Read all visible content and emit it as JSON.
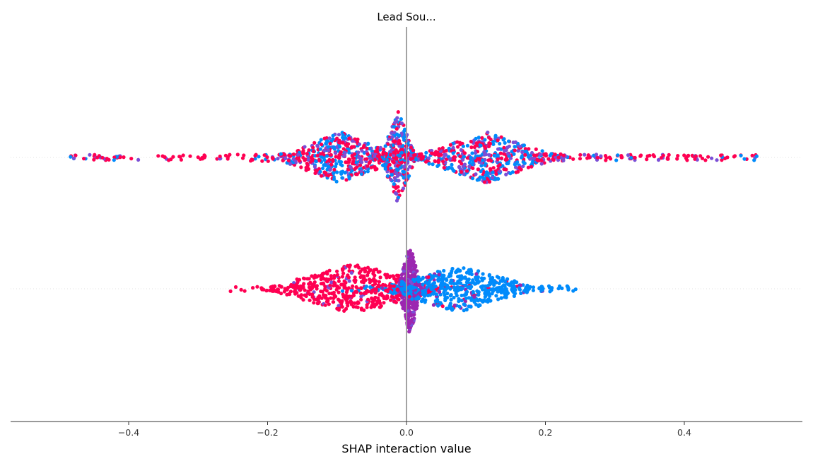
{
  "chart_data": {
    "type": "scatter",
    "subtype": "shap-interaction-beeswarm",
    "title": "Lead Sou...",
    "xlabel": "SHAP interaction value",
    "xlim": [
      -0.57,
      0.57
    ],
    "xticks": [
      -0.4,
      -0.2,
      0.0,
      0.2,
      0.4
    ],
    "xtick_labels": [
      "−0.4",
      "−0.2",
      "0.0",
      "0.2",
      "0.4"
    ],
    "zero_line": 0.0,
    "colors": {
      "high": "#ff0052",
      "low": "#008bfb",
      "mid": "#9c27b0",
      "blend": "#7b4fd6",
      "zero_line": "#999999",
      "row_guide": "#e0e0e0",
      "axis": "#333333"
    },
    "rows": [
      {
        "index": 0,
        "x_min": -0.49,
        "x_max": 0.505,
        "clusters": [
          {
            "center": -0.095,
            "spread": 0.045,
            "weight": 0.3,
            "height": 0.55,
            "mix": "mixed"
          },
          {
            "center": -0.012,
            "spread": 0.012,
            "weight": 0.18,
            "height": 1.0,
            "mix": "mixed"
          },
          {
            "center": 0.115,
            "spread": 0.05,
            "weight": 0.3,
            "height": 0.55,
            "mix": "mixed"
          },
          {
            "center": 0.0,
            "spread": 0.28,
            "weight": 0.22,
            "height": 0.12,
            "mix": "mostly-high"
          }
        ]
      },
      {
        "index": 1,
        "x_min": -0.255,
        "x_max": 0.245,
        "clusters": [
          {
            "center": -0.075,
            "spread": 0.06,
            "weight": 0.34,
            "height": 0.55,
            "mix": "high"
          },
          {
            "center": 0.005,
            "spread": 0.008,
            "weight": 0.26,
            "height": 1.0,
            "mix": "mid"
          },
          {
            "center": 0.075,
            "spread": 0.055,
            "weight": 0.34,
            "height": 0.5,
            "mix": "low"
          },
          {
            "center": 0.0,
            "spread": 0.15,
            "weight": 0.06,
            "height": 0.1,
            "mix": "tails"
          }
        ]
      }
    ]
  }
}
